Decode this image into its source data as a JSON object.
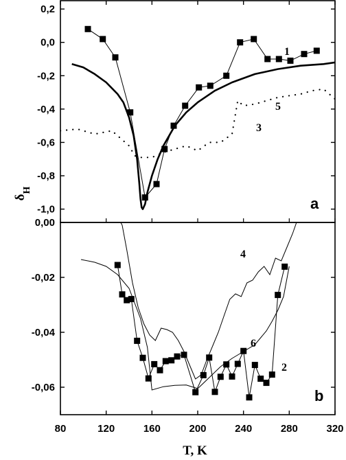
{
  "chart_data": [
    {
      "type": "line",
      "panel": "a",
      "ylabel": "δH",
      "xlim": [
        80,
        320
      ],
      "ylim": [
        -1.08,
        0.25
      ],
      "yticks": [
        0.2,
        0.0,
        -0.2,
        -0.4,
        -0.6,
        -0.8,
        -1.0
      ],
      "ytick_labels": [
        "0,2",
        "0,0",
        "-0,2",
        "-0,4",
        "-0,6",
        "-0,8",
        "-1,0"
      ],
      "series": [
        {
          "name": "1",
          "style": "line+square-markers",
          "x": [
            104,
            117,
            128,
            141,
            154,
            164,
            171,
            179,
            189,
            201,
            211,
            225,
            237,
            249,
            261,
            271,
            281,
            293,
            304
          ],
          "y": [
            0.08,
            0.02,
            -0.09,
            -0.42,
            -0.93,
            -0.85,
            -0.64,
            -0.5,
            -0.38,
            -0.27,
            -0.26,
            -0.2,
            0.0,
            0.02,
            -0.1,
            -0.1,
            -0.11,
            -0.07,
            -0.05
          ]
        },
        {
          "name": "3",
          "style": "dotted",
          "x": [
            80,
            95,
            110,
            125,
            140,
            145,
            150,
            155,
            160,
            170,
            180,
            190,
            200,
            210,
            220,
            230,
            235,
            240,
            250,
            260,
            270,
            280,
            290,
            300,
            310,
            320
          ],
          "y": [
            -0.53,
            -0.52,
            -0.55,
            -0.53,
            -0.62,
            -0.68,
            -0.69,
            -0.69,
            -0.69,
            -0.66,
            -0.64,
            -0.62,
            -0.65,
            -0.6,
            -0.6,
            -0.55,
            -0.35,
            -0.38,
            -0.37,
            -0.35,
            -0.33,
            -0.32,
            -0.31,
            -0.29,
            -0.28,
            -0.34
          ]
        },
        {
          "name": "5",
          "style": "solid-thick",
          "x": [
            90,
            100,
            110,
            120,
            130,
            135,
            140,
            144,
            147,
            149,
            150,
            151,
            152,
            154,
            156,
            160,
            165,
            170,
            180,
            190,
            200,
            215,
            230,
            250,
            270,
            290,
            310,
            320
          ],
          "y": [
            -0.13,
            -0.15,
            -0.19,
            -0.24,
            -0.31,
            -0.36,
            -0.45,
            -0.56,
            -0.7,
            -0.85,
            -0.94,
            -0.99,
            -1.0,
            -0.97,
            -0.9,
            -0.8,
            -0.7,
            -0.62,
            -0.5,
            -0.42,
            -0.36,
            -0.29,
            -0.24,
            -0.19,
            -0.16,
            -0.14,
            -0.13,
            -0.12
          ]
        }
      ],
      "annotations": [
        "1",
        "5",
        "3",
        "a"
      ]
    },
    {
      "type": "line",
      "panel": "b",
      "xlabel": "T, K",
      "xlim": [
        80,
        320
      ],
      "ylim": [
        -0.07,
        0.0
      ],
      "xticks": [
        80,
        120,
        160,
        200,
        240,
        280,
        320
      ],
      "yticks": [
        0.0,
        -0.02,
        -0.04,
        -0.06
      ],
      "ytick_labels": [
        "0,00",
        "-0,02",
        "-0,04",
        "-0,06"
      ],
      "series": [
        {
          "name": "2",
          "style": "line+square-markers",
          "x": [
            130,
            134,
            138,
            142,
            147,
            152,
            157,
            162,
            167,
            172,
            177,
            182,
            188,
            198,
            205,
            210,
            215,
            220,
            225,
            230,
            235,
            240,
            245,
            250,
            255,
            260,
            265,
            270,
            276
          ],
          "y": [
            -0.0155,
            -0.0262,
            -0.0283,
            -0.0279,
            -0.0431,
            -0.0493,
            -0.0568,
            -0.0516,
            -0.0538,
            -0.0505,
            -0.0502,
            -0.0488,
            -0.0482,
            -0.0618,
            -0.0556,
            -0.0492,
            -0.0617,
            -0.0562,
            -0.0517,
            -0.0561,
            -0.0515,
            -0.0468,
            -0.0637,
            -0.0519,
            -0.0569,
            -0.0584,
            -0.0554,
            -0.0264,
            -0.0161
          ]
        },
        {
          "name": "4",
          "style": "thin-line",
          "x": [
            122,
            130,
            134,
            138,
            143,
            148,
            153,
            158,
            163,
            168,
            173,
            178,
            183,
            188,
            193,
            198,
            203,
            208,
            213,
            218,
            223,
            228,
            233,
            238,
            243,
            248,
            253,
            258,
            263,
            268,
            273,
            278,
            283,
            288
          ],
          "y": [
            0.002,
            0.002,
            -0.001,
            -0.01,
            -0.022,
            -0.031,
            -0.037,
            -0.041,
            -0.043,
            -0.0385,
            -0.039,
            -0.04,
            -0.043,
            -0.047,
            -0.052,
            -0.057,
            -0.0555,
            -0.05,
            -0.045,
            -0.04,
            -0.034,
            -0.028,
            -0.026,
            -0.027,
            -0.022,
            -0.021,
            -0.018,
            -0.016,
            -0.019,
            -0.013,
            -0.014,
            -0.009,
            -0.004,
            0.002
          ]
        },
        {
          "name": "6",
          "style": "thin-line",
          "x": [
            98,
            110,
            120,
            130,
            140,
            150,
            156,
            160,
            170,
            180,
            190,
            200,
            210,
            220,
            230,
            240,
            250,
            260,
            265,
            270,
            275,
            280
          ],
          "y": [
            -0.0135,
            -0.0145,
            -0.016,
            -0.019,
            -0.024,
            -0.035,
            -0.0455,
            -0.061,
            -0.0598,
            -0.0593,
            -0.0592,
            -0.0605,
            -0.0565,
            -0.0525,
            -0.0495,
            -0.047,
            -0.0445,
            -0.0395,
            -0.036,
            -0.032,
            -0.027,
            -0.016
          ]
        }
      ],
      "annotations": [
        "4",
        "6",
        "2",
        "b"
      ]
    }
  ]
}
